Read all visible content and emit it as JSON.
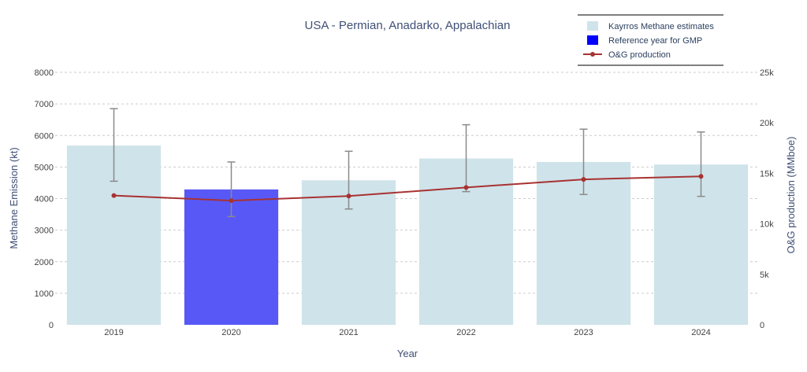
{
  "chart_data": {
    "type": "bar",
    "title": "USA - Permian, Anadarko, Appalachian",
    "xlabel": "Year",
    "ylabel": "Methane Emission (kt)",
    "y2label": "O&G production (MMboe)",
    "categories": [
      "2019",
      "2020",
      "2021",
      "2022",
      "2023",
      "2024"
    ],
    "ylim": [
      0,
      8000
    ],
    "y2lim": [
      0,
      25000
    ],
    "yticks": [
      "0",
      "1000",
      "2000",
      "3000",
      "4000",
      "5000",
      "6000",
      "7000",
      "8000"
    ],
    "y2ticks": [
      "0",
      "5k",
      "10k",
      "15k",
      "20k",
      "25k"
    ],
    "grid": true,
    "legend_position": "top-right",
    "series": [
      {
        "name": "Kayrros Methane estimates",
        "kind": "bar",
        "axis": "y",
        "color": "#cfe3ea",
        "highlight_color": "#5858f6",
        "highlight_category": "2020",
        "values": [
          5680,
          4290,
          4580,
          5270,
          5160,
          5080
        ],
        "error_low": [
          4550,
          3430,
          3670,
          4220,
          4130,
          4070
        ],
        "error_high": [
          6850,
          5160,
          5500,
          6340,
          6200,
          6110
        ]
      },
      {
        "name": "Reference year for GMP",
        "kind": "legend-only",
        "color": "#0000ff"
      },
      {
        "name": "O&G production",
        "kind": "line",
        "axis": "y2",
        "color": "#a83232",
        "values": [
          12800,
          12300,
          12750,
          13600,
          14400,
          14700
        ]
      }
    ]
  }
}
